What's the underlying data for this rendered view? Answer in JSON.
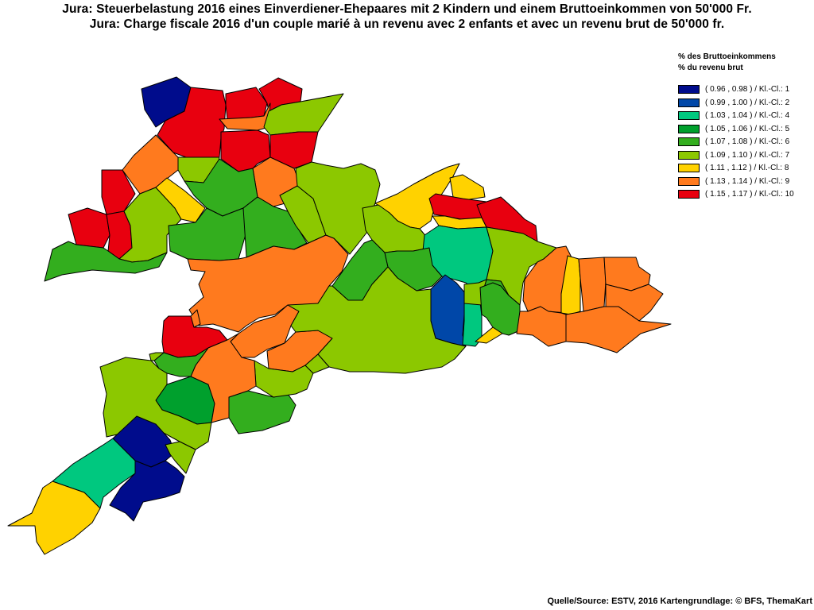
{
  "title": {
    "line1": "Jura: Steuerbelastung 2016 eines Einverdiener-Ehepaares mit 2 Kindern und einem Bruttoeinkommen von 50'000 Fr.",
    "line2": "Jura: Charge fiscale 2016 d'un couple marié à un revenu avec 2 enfants et avec un revenu brut de 50'000 fr."
  },
  "legend": {
    "heading1": "% des Bruttoeinkommens",
    "heading2": "% du revenu brut",
    "items": [
      {
        "label": "( 0.96 , 0.98 ) / Kl.-Cl.: 1",
        "color": "#000C8C"
      },
      {
        "label": "( 0.99 , 1.00 ) / Kl.-Cl.: 2",
        "color": "#0047A8"
      },
      {
        "label": "( 1.03 , 1.04 ) / Kl.-Cl.: 4",
        "color": "#00C87F"
      },
      {
        "label": "( 1.05 , 1.06 ) / Kl.-Cl.: 5",
        "color": "#00A02D"
      },
      {
        "label": "( 1.07 , 1.08 ) / Kl.-Cl.: 6",
        "color": "#33AE1E"
      },
      {
        "label": "( 1.09 , 1.10 ) / Kl.-Cl.: 7",
        "color": "#8CC800"
      },
      {
        "label": "( 1.11 , 1.12 ) / Kl.-Cl.: 8",
        "color": "#FFD200"
      },
      {
        "label": "( 1.13 , 1.14 ) / Kl.-Cl.: 9",
        "color": "#FF7A1E"
      },
      {
        "label": "( 1.15 , 1.17 ) / Kl.-Cl.: 10",
        "color": "#E8000F"
      }
    ]
  },
  "source": "Quelle/Source: ESTV, 2016 Kartengrundlage: © BFS, ThemaKart",
  "regions": [
    {
      "cls": 1
    },
    {
      "cls": 10
    },
    {
      "cls": 10
    },
    {
      "cls": 10
    },
    {
      "cls": 9
    },
    {
      "cls": 7
    },
    {
      "cls": 9
    },
    {
      "cls": 10
    },
    {
      "cls": 10
    },
    {
      "cls": 7
    },
    {
      "cls": 9
    },
    {
      "cls": 6
    },
    {
      "cls": 10
    },
    {
      "cls": 10
    },
    {
      "cls": 10
    },
    {
      "cls": 7
    },
    {
      "cls": 8
    },
    {
      "cls": 6
    },
    {
      "cls": 6
    },
    {
      "cls": 6
    },
    {
      "cls": 7
    },
    {
      "cls": 9
    },
    {
      "cls": 7
    },
    {
      "cls": 8
    },
    {
      "cls": 8
    },
    {
      "cls": 7
    },
    {
      "cls": 10
    },
    {
      "cls": 8
    },
    {
      "cls": 10
    },
    {
      "cls": 6
    },
    {
      "cls": 4
    },
    {
      "cls": 6
    },
    {
      "cls": 7
    },
    {
      "cls": 6
    },
    {
      "cls": 2
    },
    {
      "cls": 4
    },
    {
      "cls": 7
    },
    {
      "cls": 6
    },
    {
      "cls": 8
    },
    {
      "cls": 9
    },
    {
      "cls": 8
    },
    {
      "cls": 9
    },
    {
      "cls": 9
    },
    {
      "cls": 9
    },
    {
      "cls": 9
    },
    {
      "cls": 9
    },
    {
      "cls": 10
    },
    {
      "cls": 9
    },
    {
      "cls": 9
    },
    {
      "cls": 7
    },
    {
      "cls": 6
    },
    {
      "cls": 7
    },
    {
      "cls": 5
    },
    {
      "cls": 9
    },
    {
      "cls": 6
    },
    {
      "cls": 7
    },
    {
      "cls": 1
    },
    {
      "cls": 4
    },
    {
      "cls": 1
    },
    {
      "cls": 7
    },
    {
      "cls": 8
    },
    {
      "cls": 7
    },
    {
      "cls": 9
    },
    {
      "cls": 7
    }
  ]
}
